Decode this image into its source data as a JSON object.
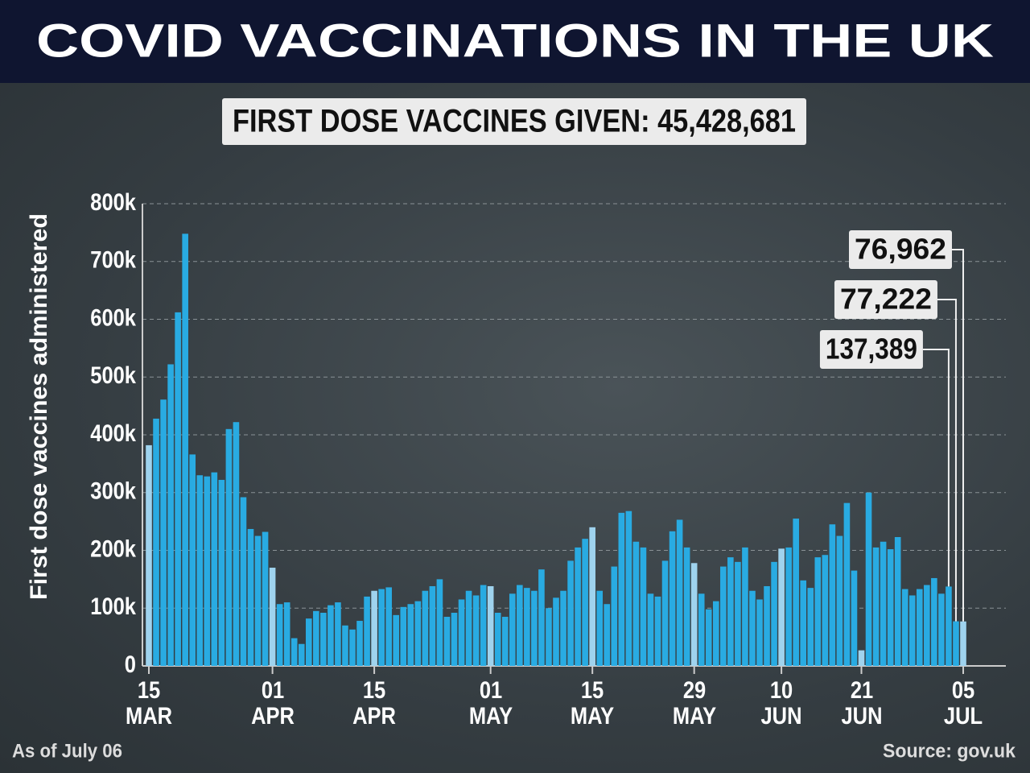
{
  "chart_data": {
    "type": "bar",
    "title": "COVID VACCINATIONS IN THE UK",
    "subtitle": "FIRST DOSE VACCINES GIVEN: 45,428,681",
    "ylabel": "First dose vaccines administered",
    "note": "As of July 06",
    "source": "Source: gov.uk",
    "color": "#29abe2",
    "highlight_color": "#9fd3ee",
    "grid": true,
    "ylim": [
      0,
      800000
    ],
    "yticks": [
      0,
      {
        "value": 100000,
        "label": "100k"
      },
      {
        "value": 200000,
        "label": "200k"
      },
      {
        "value": 300000,
        "label": "300k"
      },
      {
        "value": 400000,
        "label": "400k"
      },
      {
        "value": 500000,
        "label": "500k"
      },
      {
        "value": 600000,
        "label": "600k"
      },
      {
        "value": 700000,
        "label": "700k"
      },
      {
        "value": 800000,
        "label": "800k"
      }
    ],
    "categories": [
      "15\nMAR",
      null,
      null,
      null,
      null,
      null,
      null,
      null,
      null,
      null,
      null,
      null,
      null,
      null,
      null,
      null,
      null,
      "01\nAPR",
      null,
      null,
      null,
      null,
      null,
      null,
      null,
      null,
      null,
      null,
      null,
      null,
      null,
      "15\nAPR",
      null,
      null,
      null,
      null,
      null,
      null,
      null,
      null,
      null,
      null,
      null,
      null,
      null,
      null,
      null,
      "01\nMAY",
      null,
      null,
      null,
      null,
      null,
      null,
      null,
      null,
      null,
      null,
      null,
      null,
      null,
      "15\nMAY",
      null,
      null,
      null,
      null,
      null,
      null,
      null,
      null,
      null,
      null,
      null,
      null,
      null,
      "29\nMAY",
      null,
      null,
      null,
      null,
      null,
      null,
      null,
      null,
      null,
      null,
      null,
      "10\nJUN",
      null,
      null,
      null,
      null,
      null,
      null,
      null,
      null,
      null,
      null,
      "21\nJUN",
      null,
      null,
      null,
      null,
      null,
      null,
      null,
      null,
      null,
      null,
      null,
      null,
      null,
      "05\nJUL"
    ],
    "values": [
      382000,
      428000,
      461000,
      522000,
      612000,
      748000,
      366000,
      330000,
      328000,
      335000,
      322000,
      410000,
      422000,
      292000,
      237000,
      225000,
      232000,
      170000,
      107000,
      110000,
      48000,
      38000,
      82000,
      95000,
      92000,
      105000,
      110000,
      70000,
      63000,
      78000,
      120000,
      130000,
      133000,
      136000,
      88000,
      102000,
      107000,
      112000,
      130000,
      138000,
      150000,
      85000,
      92000,
      115000,
      130000,
      122000,
      140000,
      138000,
      92000,
      85000,
      125000,
      140000,
      135000,
      130000,
      167000,
      100000,
      118000,
      130000,
      182000,
      205000,
      220000,
      240000,
      130000,
      107000,
      172000,
      265000,
      268000,
      215000,
      205000,
      125000,
      120000,
      182000,
      233000,
      253000,
      205000,
      178000,
      125000,
      98000,
      112000,
      172000,
      188000,
      180000,
      205000,
      130000,
      115000,
      138000,
      180000,
      203000,
      205000,
      255000,
      148000,
      135000,
      188000,
      192000,
      245000,
      225000,
      282000,
      165000,
      27000,
      300000,
      205000,
      215000,
      202000,
      223000,
      133000,
      122000,
      133000,
      140000,
      152000,
      125000,
      137389,
      77222,
      76962
    ],
    "value_labels": [
      null,
      null,
      null,
      null,
      null,
      null,
      null,
      null,
      null,
      null,
      null,
      null,
      null,
      null,
      null,
      null,
      null,
      null,
      null,
      null,
      null,
      null,
      null,
      null,
      null,
      null,
      null,
      null,
      null,
      null,
      null,
      null,
      null,
      null,
      null,
      null,
      null,
      null,
      null,
      null,
      null,
      null,
      null,
      null,
      null,
      null,
      null,
      null,
      null,
      null,
      null,
      null,
      null,
      null,
      null,
      null,
      null,
      null,
      null,
      null,
      null,
      null,
      null,
      null,
      null,
      null,
      null,
      null,
      null,
      null,
      null,
      null,
      null,
      null,
      null,
      null,
      null,
      null,
      null,
      null,
      null,
      null,
      null,
      null,
      null,
      null,
      null,
      null,
      null,
      null,
      null,
      null,
      null,
      null,
      null,
      null,
      null,
      null,
      null,
      null,
      null,
      null,
      null,
      null,
      null,
      null,
      null,
      null,
      null,
      null,
      "137,389",
      "77,222",
      "76,962"
    ]
  }
}
